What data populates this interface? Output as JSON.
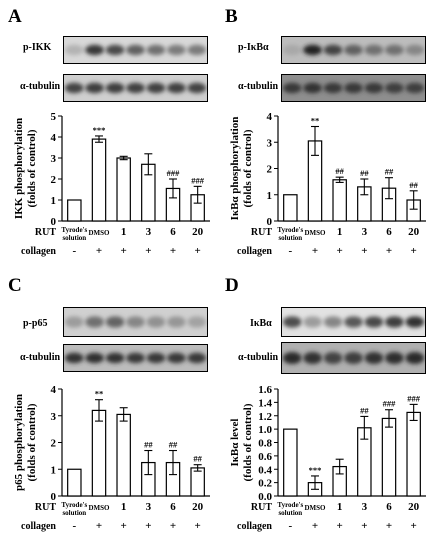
{
  "panels": [
    {
      "letter": "A",
      "blots": [
        {
          "label": "p-IKK",
          "bands": [
            0.25,
            0.8,
            0.72,
            0.62,
            0.55,
            0.5,
            0.5
          ],
          "bg": "#d8d8d8"
        },
        {
          "label": "α-tubulin",
          "bands": [
            0.75,
            0.78,
            0.78,
            0.76,
            0.76,
            0.76,
            0.75
          ],
          "bg": "#cfcfcf"
        }
      ]
    },
    {
      "letter": "B",
      "blots": [
        {
          "label": "p-IκBα",
          "bands": [
            0.3,
            0.9,
            0.75,
            0.62,
            0.55,
            0.55,
            0.45
          ],
          "bg": "#bdbdbd"
        },
        {
          "label": "α-tubulin",
          "bands": [
            0.8,
            0.82,
            0.8,
            0.8,
            0.79,
            0.78,
            0.78
          ],
          "bg": "#8e8e8e"
        }
      ]
    },
    {
      "letter": "C",
      "blots": [
        {
          "label": "p-p65",
          "bands": [
            0.35,
            0.55,
            0.6,
            0.45,
            0.4,
            0.38,
            0.32
          ],
          "bg": "#d0d0d0"
        },
        {
          "label": "α-tubulin",
          "bands": [
            0.82,
            0.84,
            0.82,
            0.8,
            0.8,
            0.8,
            0.8
          ],
          "bg": "#bcbcbc"
        }
      ]
    },
    {
      "letter": "D",
      "blots": [
        {
          "label": "IκBα",
          "bands": [
            0.7,
            0.35,
            0.45,
            0.65,
            0.72,
            0.78,
            0.82
          ],
          "bg": "#e2e2e2"
        },
        {
          "label": "α-tubulin",
          "bands": [
            0.85,
            0.82,
            0.75,
            0.78,
            0.82,
            0.84,
            0.86
          ],
          "bg": "#b0b0b0"
        }
      ]
    }
  ],
  "chart_data": [
    {
      "type": "bar",
      "panel": "A",
      "ylabel": [
        "IKK phosphorylation",
        "(folds of control)"
      ],
      "ylim": [
        0,
        5
      ],
      "yticks": [
        "0",
        "1",
        "2",
        "3",
        "4",
        "5"
      ],
      "categories": [
        "Tyrode's solution",
        "DMSO",
        "1",
        "3",
        "6",
        "20"
      ],
      "values": [
        1.0,
        3.9,
        3.0,
        2.7,
        1.55,
        1.25
      ],
      "errors": [
        0,
        0.15,
        0.08,
        0.5,
        0.45,
        0.4
      ],
      "annotations": [
        "",
        "***",
        "",
        "",
        "###",
        "###"
      ],
      "row_labels": {
        "rut": "RUT",
        "collagen": "collagen"
      },
      "collagen": [
        "-",
        "+",
        "+",
        "+",
        "+",
        "+"
      ]
    },
    {
      "type": "bar",
      "panel": "B",
      "ylabel": [
        "IκBα phosphorylation",
        "(folds of control)"
      ],
      "ylim": [
        0,
        4
      ],
      "yticks": [
        "0",
        "1",
        "2",
        "3",
        "4"
      ],
      "categories": [
        "Tyrode's solution",
        "DMSO",
        "1",
        "3",
        "6",
        "20"
      ],
      "values": [
        1.0,
        3.05,
        1.57,
        1.3,
        1.25,
        0.8
      ],
      "errors": [
        0,
        0.55,
        0.1,
        0.3,
        0.4,
        0.35
      ],
      "annotations": [
        "",
        "**",
        "##",
        "##",
        "##",
        "##"
      ],
      "row_labels": {
        "rut": "RUT",
        "collagen": "collagen"
      },
      "collagen": [
        "-",
        "+",
        "+",
        "+",
        "+",
        "+"
      ]
    },
    {
      "type": "bar",
      "panel": "C",
      "ylabel": [
        "p65 phosphorylation",
        "(folds of control)"
      ],
      "ylim": [
        0,
        4
      ],
      "yticks": [
        "0",
        "1",
        "2",
        "3",
        "4"
      ],
      "categories": [
        "Tyrode's solution",
        "DMSO",
        "1",
        "3",
        "6",
        "20"
      ],
      "values": [
        1.0,
        3.2,
        3.05,
        1.25,
        1.25,
        1.05
      ],
      "errors": [
        0,
        0.4,
        0.25,
        0.45,
        0.45,
        0.12
      ],
      "annotations": [
        "",
        "**",
        "",
        "##",
        "##",
        "##"
      ],
      "row_labels": {
        "rut": "RUT",
        "collagen": "collagen"
      },
      "collagen": [
        "-",
        "+",
        "+",
        "+",
        "+",
        "+"
      ]
    },
    {
      "type": "bar",
      "panel": "D",
      "ylabel": [
        "IκBα level",
        "(folds of control)"
      ],
      "ylim": [
        0,
        1.6
      ],
      "yticks": [
        "0.0",
        "0.2",
        "0.4",
        "0.6",
        "0.8",
        "1.0",
        "1.2",
        "1.4",
        "1.6"
      ],
      "categories": [
        "Tyrode's solution",
        "DMSO",
        "1",
        "3",
        "6",
        "20"
      ],
      "values": [
        1.0,
        0.2,
        0.44,
        1.02,
        1.16,
        1.25
      ],
      "errors": [
        0,
        0.1,
        0.11,
        0.17,
        0.13,
        0.12
      ],
      "annotations": [
        "",
        "***",
        "",
        "##",
        "###",
        "###"
      ],
      "row_labels": {
        "rut": "RUT",
        "collagen": "collagen"
      },
      "collagen": [
        "-",
        "+",
        "+",
        "+",
        "+",
        "+"
      ]
    }
  ]
}
